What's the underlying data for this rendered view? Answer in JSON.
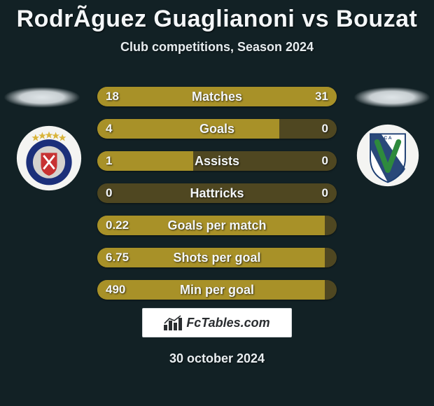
{
  "title": "RodrÃ­guez Guaglianoni vs Bouzat",
  "subtitle": "Club competitions, Season 2024",
  "date": "30 october 2024",
  "fctables_label": "FcTables.com",
  "colors": {
    "background": "#122125",
    "bar_track": "#4f4721",
    "bar_fill": "#a89128",
    "text": "#f3f6f8"
  },
  "badges": {
    "left": {
      "name": "argentinos-juniors-badge",
      "outer": "#f4f4f2",
      "ring": "#1b2f7a",
      "inner": "#d4d2ce",
      "shield": "#c73232",
      "stars": "#d9b43a"
    },
    "right": {
      "name": "velez-sarsfield-badge",
      "outer": "#f4f4f2",
      "shield_white": "#ffffff",
      "shield_blue": "#1d3e72",
      "v_green": "#2e8a3d"
    }
  },
  "rows": [
    {
      "label": "Matches",
      "left": "18",
      "right": "31",
      "left_pct": 36.7,
      "right_pct": 63.3
    },
    {
      "label": "Goals",
      "left": "4",
      "right": "0",
      "left_pct": 76.0,
      "right_pct": 0.0
    },
    {
      "label": "Assists",
      "left": "1",
      "right": "0",
      "left_pct": 40.0,
      "right_pct": 0.0
    },
    {
      "label": "Hattricks",
      "left": "0",
      "right": "0",
      "left_pct": 0.0,
      "right_pct": 0.0
    },
    {
      "label": "Goals per match",
      "left": "0.22",
      "right": "",
      "left_pct": 95.0,
      "right_pct": 0.0
    },
    {
      "label": "Shots per goal",
      "left": "6.75",
      "right": "",
      "left_pct": 95.0,
      "right_pct": 0.0
    },
    {
      "label": "Min per goal",
      "left": "490",
      "right": "",
      "left_pct": 95.0,
      "right_pct": 0.0
    }
  ]
}
